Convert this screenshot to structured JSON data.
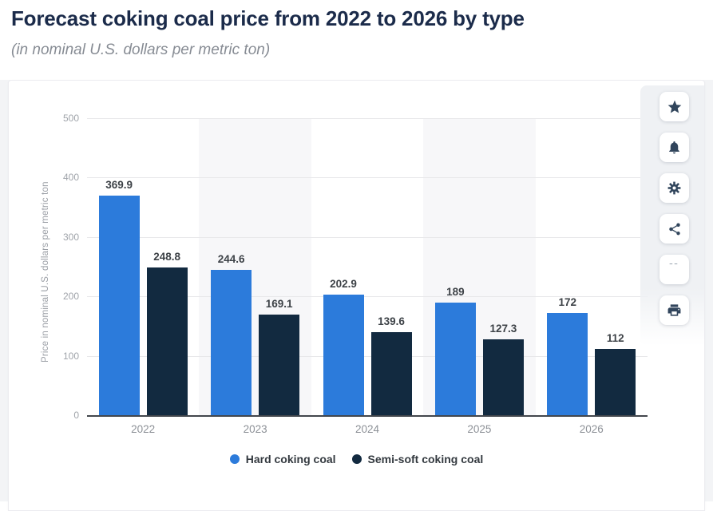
{
  "page": {
    "title": "Forecast coking coal price from 2022 to 2026 by type",
    "subtitle": "(in nominal U.S. dollars per metric ton)"
  },
  "toolbar": {
    "buttons": [
      {
        "name": "favorite",
        "icon": "star-icon"
      },
      {
        "name": "alerts",
        "icon": "bell-icon"
      },
      {
        "name": "settings",
        "icon": "gear-icon"
      },
      {
        "name": "share",
        "icon": "share-icon"
      },
      {
        "name": "cite",
        "icon": "quote-icon"
      },
      {
        "name": "print",
        "icon": "printer-icon"
      }
    ],
    "icon_color": "#31455c"
  },
  "chart_data": {
    "type": "bar",
    "title": "Forecast coking coal price from 2022 to 2026 by type",
    "categories": [
      "2022",
      "2023",
      "2024",
      "2025",
      "2026"
    ],
    "series": [
      {
        "name": "Hard coking coal",
        "color": "#2c7bdb",
        "values": [
          369.9,
          244.6,
          202.9,
          189,
          172
        ]
      },
      {
        "name": "Semi-soft coking coal",
        "color": "#122a40",
        "values": [
          248.8,
          169.1,
          139.6,
          127.3,
          112
        ]
      }
    ],
    "xlabel": "",
    "ylabel": "Price in nominal U.S. dollars per metric ton",
    "ylim": [
      0,
      500
    ],
    "yticks": [
      0,
      100,
      200,
      300,
      400,
      500
    ],
    "grid": true,
    "legend_position": "bottom",
    "band_color": "#f7f7f9",
    "banded_category_indices": [
      1,
      3
    ]
  }
}
